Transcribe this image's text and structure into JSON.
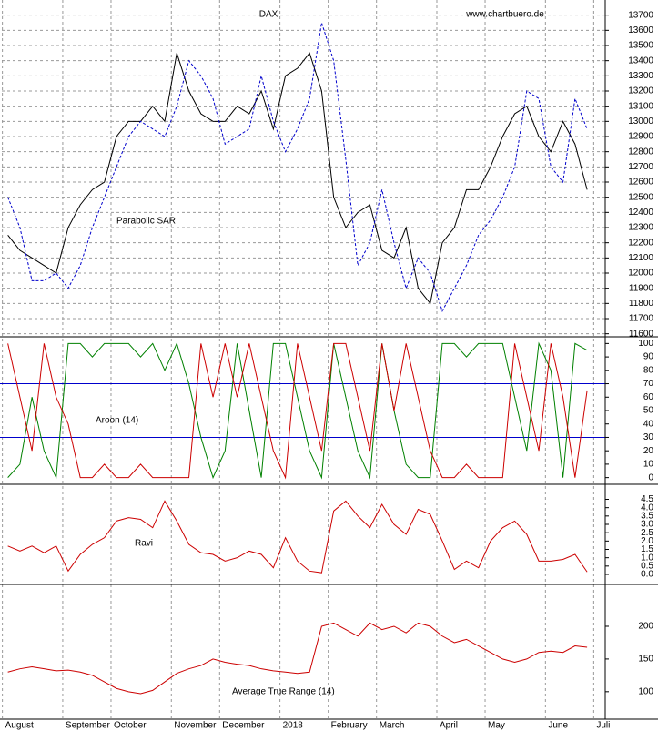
{
  "chart_data": [
    {
      "type": "line",
      "title": "DAX",
      "subtitle": "www.chartbuero.de",
      "annotation": "Parabolic SAR",
      "ylim": [
        11580,
        13800
      ],
      "yticks": [
        11600,
        11700,
        11800,
        11900,
        12000,
        12100,
        12200,
        12300,
        12400,
        12500,
        12600,
        12700,
        12800,
        12900,
        13000,
        13100,
        13200,
        13300,
        13400,
        13500,
        13600,
        13700
      ],
      "grid": true,
      "series": [
        {
          "color": "#000000",
          "values": [
            12250,
            12150,
            12100,
            12050,
            12000,
            12300,
            12450,
            12550,
            12600,
            12900,
            13000,
            13000,
            13100,
            13000,
            13450,
            13200,
            13050,
            13000,
            13000,
            13100,
            13050,
            13200,
            12950,
            13300,
            13350,
            13450,
            13200,
            12500,
            12300,
            12400,
            12450,
            12150,
            12100,
            12300,
            11900,
            11800,
            12200,
            12300,
            12550,
            12550,
            12700,
            12900,
            13050,
            13100,
            12900,
            12800,
            13000,
            12850,
            12550,
            null
          ]
        },
        {
          "color": "#0000cc",
          "dashed": true,
          "values": [
            12500,
            12300,
            11950,
            11950,
            12000,
            11900,
            12050,
            12300,
            12500,
            12700,
            12900,
            13000,
            12950,
            12900,
            13100,
            13400,
            13300,
            13150,
            12850,
            12900,
            12950,
            13300,
            13000,
            12800,
            12950,
            13150,
            13650,
            13400,
            12750,
            12050,
            12200,
            12550,
            12200,
            11900,
            12100,
            12000,
            11750,
            11900,
            12050,
            12250,
            12350,
            12500,
            12700,
            13200,
            13150,
            12700,
            12600,
            13150,
            12950,
            null
          ]
        }
      ]
    },
    {
      "type": "line",
      "annotation": "Aroon (14)",
      "ylim": [
        -5,
        105
      ],
      "yticks": [
        0,
        10,
        20,
        30,
        40,
        50,
        60,
        70,
        80,
        90,
        100
      ],
      "levels": [
        30,
        70
      ],
      "levels_color": "#0000cc",
      "series": [
        {
          "color": "#008000",
          "values": [
            0,
            10,
            60,
            20,
            0,
            100,
            100,
            90,
            100,
            100,
            100,
            90,
            100,
            80,
            100,
            70,
            30,
            0,
            20,
            100,
            50,
            0,
            100,
            100,
            60,
            20,
            0,
            100,
            60,
            20,
            0,
            100,
            50,
            10,
            0,
            0,
            100,
            100,
            90,
            100,
            100,
            100,
            60,
            20,
            100,
            80,
            0,
            100,
            95,
            null
          ]
        },
        {
          "color": "#cc0000",
          "values": [
            100,
            60,
            20,
            100,
            60,
            40,
            0,
            0,
            10,
            0,
            0,
            10,
            0,
            0,
            0,
            0,
            100,
            60,
            100,
            60,
            100,
            60,
            20,
            0,
            100,
            60,
            20,
            100,
            100,
            60,
            20,
            100,
            50,
            100,
            60,
            20,
            0,
            0,
            10,
            0,
            0,
            0,
            100,
            60,
            20,
            100,
            60,
            0,
            65,
            null
          ]
        }
      ]
    },
    {
      "type": "line",
      "annotation": "Ravi",
      "ylim": [
        -0.6,
        5.4
      ],
      "yticks": [
        {
          "value": 0,
          "label": "0.0"
        },
        0.5,
        {
          "value": 1,
          "label": "1.0"
        },
        1.5,
        {
          "value": 2,
          "label": "2.0"
        },
        2.5,
        {
          "value": 3,
          "label": "3.0"
        },
        3.5,
        {
          "value": 4,
          "label": "4.0"
        },
        4.5
      ],
      "series": [
        {
          "color": "#cc0000",
          "values": [
            1.7,
            1.4,
            1.7,
            1.3,
            1.7,
            0.2,
            1.2,
            1.8,
            2.2,
            3.2,
            3.4,
            3.3,
            2.8,
            4.4,
            3.2,
            1.8,
            1.3,
            1.2,
            0.8,
            1.0,
            1.4,
            1.2,
            0.4,
            2.2,
            0.8,
            0.2,
            0.1,
            3.8,
            4.4,
            3.5,
            2.8,
            4.2,
            3.0,
            2.4,
            3.9,
            3.6,
            2.0,
            0.3,
            0.8,
            0.4,
            2.0,
            2.8,
            3.2,
            2.4,
            0.8,
            0.8,
            0.9,
            1.2,
            0.15,
            null
          ]
        }
      ]
    },
    {
      "type": "line",
      "annotation": "Average True Range (14)",
      "ylim": [
        58,
        264
      ],
      "yticks": [
        100,
        150,
        200
      ],
      "categories": [
        "August",
        null,
        null,
        null,
        null,
        "September",
        null,
        null,
        null,
        "October",
        null,
        null,
        null,
        null,
        "November",
        null,
        null,
        null,
        "December",
        null,
        null,
        null,
        null,
        "2018",
        null,
        null,
        null,
        "February",
        null,
        null,
        null,
        "March",
        null,
        null,
        null,
        null,
        "April",
        null,
        null,
        null,
        "May",
        null,
        null,
        null,
        null,
        "June",
        null,
        null,
        null,
        "Juli"
      ],
      "series": [
        {
          "color": "#cc0000",
          "values": [
            130,
            135,
            138,
            135,
            132,
            133,
            130,
            125,
            115,
            105,
            100,
            97,
            102,
            115,
            128,
            135,
            140,
            150,
            145,
            142,
            140,
            135,
            132,
            130,
            128,
            130,
            200,
            205,
            195,
            185,
            205,
            195,
            200,
            190,
            205,
            200,
            185,
            175,
            180,
            170,
            160,
            150,
            145,
            150,
            160,
            162,
            160,
            170,
            168,
            null
          ]
        }
      ]
    }
  ]
}
